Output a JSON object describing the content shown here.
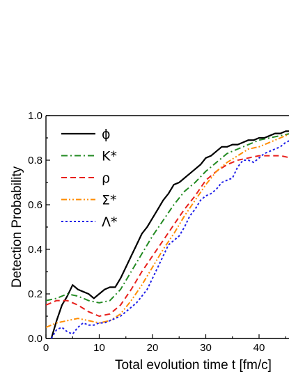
{
  "chart_data": {
    "type": "line",
    "title": "",
    "xlabel": "Total evolution time t [fm/c]",
    "ylabel": "Detection Probability",
    "xlim": [
      0,
      46
    ],
    "ylim": [
      0.0,
      1.0
    ],
    "x_ticks": [
      "0",
      "10",
      "20",
      "30",
      "40"
    ],
    "y_ticks": [
      "0.0",
      "0.2",
      "0.4",
      "0.6",
      "0.8",
      "1.0"
    ],
    "grid": false,
    "legend_position": "top-left",
    "series": [
      {
        "name": "ϕ",
        "color": "#000000",
        "style": "solid",
        "x": [
          1,
          2,
          3,
          4,
          5,
          6,
          7,
          8,
          9,
          10,
          11,
          12,
          13,
          14,
          15,
          16,
          17,
          18,
          19,
          20,
          21,
          22,
          23,
          24,
          25,
          26,
          27,
          28,
          29,
          30,
          31,
          32,
          33,
          34,
          35,
          36,
          37,
          38,
          39,
          40,
          41,
          42,
          43,
          44,
          45,
          46
        ],
        "y": [
          0.0,
          0.08,
          0.15,
          0.19,
          0.24,
          0.22,
          0.21,
          0.2,
          0.18,
          0.2,
          0.22,
          0.23,
          0.23,
          0.27,
          0.32,
          0.37,
          0.42,
          0.47,
          0.5,
          0.54,
          0.58,
          0.62,
          0.65,
          0.69,
          0.7,
          0.72,
          0.74,
          0.76,
          0.78,
          0.81,
          0.82,
          0.84,
          0.86,
          0.86,
          0.87,
          0.87,
          0.88,
          0.89,
          0.89,
          0.9,
          0.9,
          0.91,
          0.92,
          0.92,
          0.93,
          0.93
        ]
      },
      {
        "name": "K*",
        "color": "#238b23",
        "style": "dashdot",
        "x": [
          0,
          2,
          4,
          6,
          8,
          10,
          12,
          14,
          16,
          18,
          20,
          22,
          24,
          26,
          28,
          30,
          32,
          34,
          36,
          38,
          40,
          42,
          44,
          46
        ],
        "y": [
          0.17,
          0.18,
          0.2,
          0.19,
          0.17,
          0.16,
          0.17,
          0.22,
          0.3,
          0.38,
          0.46,
          0.53,
          0.6,
          0.66,
          0.7,
          0.75,
          0.79,
          0.83,
          0.85,
          0.87,
          0.89,
          0.9,
          0.91,
          0.92
        ]
      },
      {
        "name": "ρ",
        "color": "#e8201c",
        "style": "dash",
        "x": [
          0,
          2,
          4,
          6,
          8,
          10,
          12,
          14,
          16,
          18,
          20,
          22,
          24,
          26,
          28,
          30,
          32,
          34,
          36,
          38,
          40,
          42,
          44,
          46
        ],
        "y": [
          0.15,
          0.17,
          0.17,
          0.15,
          0.12,
          0.1,
          0.11,
          0.15,
          0.22,
          0.3,
          0.37,
          0.44,
          0.51,
          0.58,
          0.64,
          0.71,
          0.75,
          0.78,
          0.8,
          0.81,
          0.82,
          0.82,
          0.82,
          0.81
        ]
      },
      {
        "name": "Σ*",
        "color": "#ff8c00",
        "style": "dashdotdot",
        "x": [
          0,
          2,
          4,
          6,
          8,
          10,
          12,
          14,
          16,
          18,
          20,
          22,
          24,
          26,
          28,
          30,
          32,
          34,
          36,
          38,
          40,
          42,
          44,
          46
        ],
        "y": [
          0.05,
          0.07,
          0.08,
          0.09,
          0.08,
          0.07,
          0.08,
          0.11,
          0.17,
          0.24,
          0.32,
          0.4,
          0.47,
          0.55,
          0.62,
          0.69,
          0.75,
          0.79,
          0.82,
          0.85,
          0.86,
          0.88,
          0.9,
          0.92
        ]
      },
      {
        "name": "Λ*",
        "color": "#1f1fe8",
        "style": "dot",
        "x": [
          1,
          2,
          3,
          4,
          5,
          6,
          7,
          8,
          9,
          10,
          11,
          12,
          13,
          14,
          15,
          16,
          17,
          18,
          19,
          20,
          21,
          22,
          23,
          24,
          25,
          26,
          27,
          28,
          29,
          30,
          31,
          32,
          33,
          34,
          35,
          36,
          37,
          38,
          39,
          40,
          41,
          42,
          43,
          44,
          45,
          46
        ],
        "y": [
          0.0,
          0.04,
          0.05,
          0.03,
          0.02,
          0.05,
          0.07,
          0.06,
          0.06,
          0.07,
          0.07,
          0.08,
          0.09,
          0.1,
          0.12,
          0.14,
          0.16,
          0.19,
          0.22,
          0.27,
          0.32,
          0.37,
          0.42,
          0.44,
          0.46,
          0.5,
          0.55,
          0.58,
          0.62,
          0.64,
          0.65,
          0.67,
          0.7,
          0.71,
          0.72,
          0.77,
          0.8,
          0.8,
          0.79,
          0.81,
          0.83,
          0.84,
          0.85,
          0.86,
          0.88,
          0.89
        ]
      }
    ]
  }
}
